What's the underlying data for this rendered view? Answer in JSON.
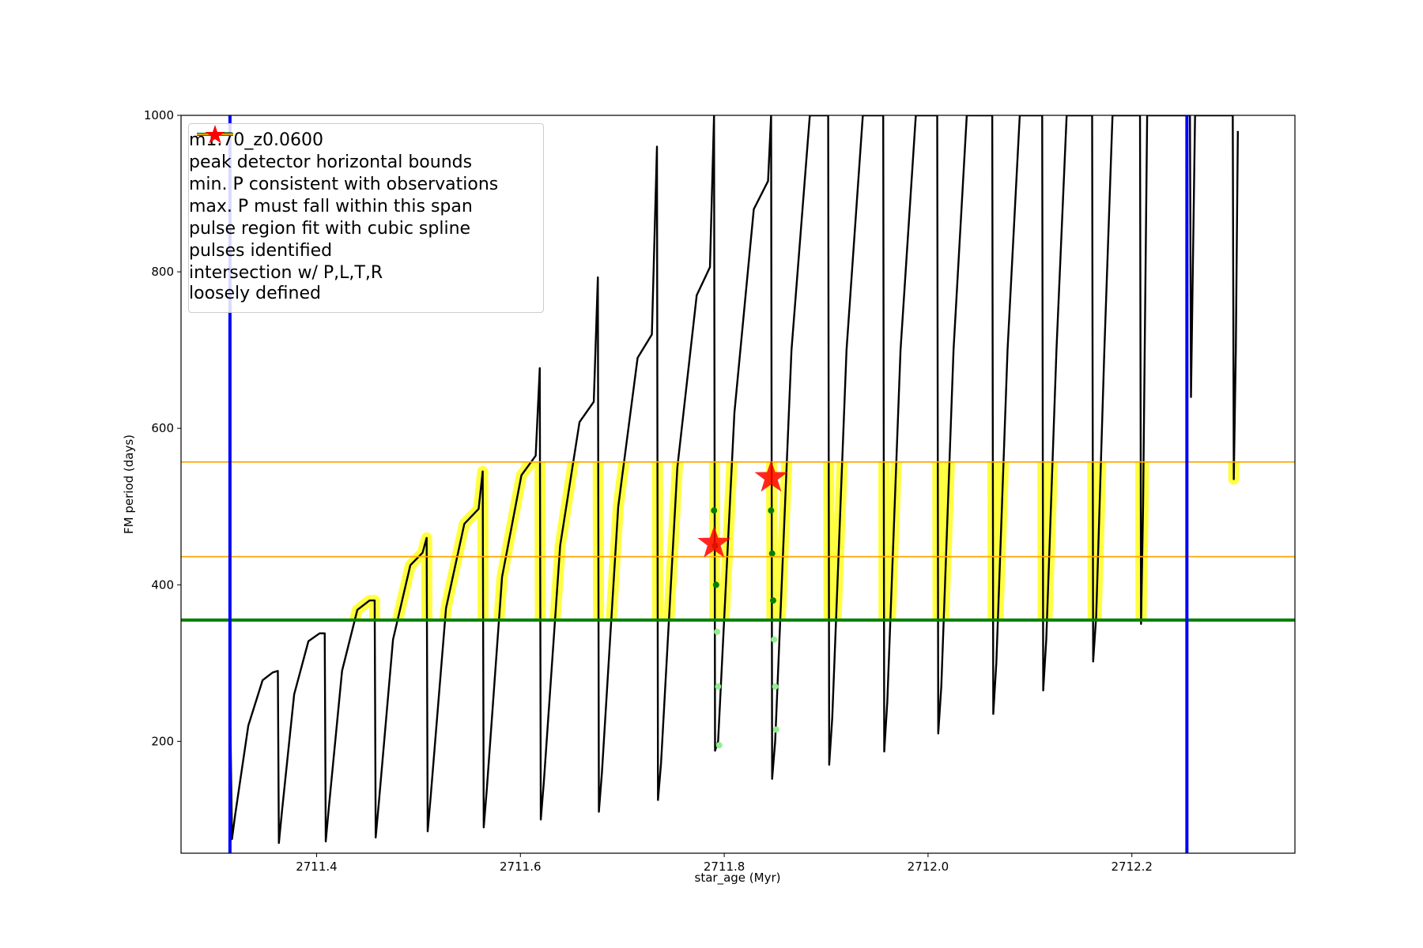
{
  "chart_data": {
    "type": "line",
    "xlabel": "star_age (Myr)",
    "ylabel": "FM period (days)",
    "xlim": [
      2711.267,
      2712.36
    ],
    "ylim": [
      57,
      1000
    ],
    "xticks": [
      2711.4,
      2711.6,
      2711.8,
      {
        "value": 2712,
        "label": "2712.0"
      },
      2712.2
    ],
    "yticks": [
      200,
      400,
      600,
      800,
      1000
    ],
    "series": [
      {
        "name": "m1.70_z0.0600",
        "color": "#000000",
        "x": [
          2711.315,
          2711.317,
          2711.32,
          2711.333,
          2711.347,
          2711.357,
          2711.362,
          2711.363,
          2711.366,
          2711.378,
          2711.392,
          2711.403,
          2711.408,
          2711.409,
          2711.412,
          2711.425,
          2711.44,
          2711.452,
          2711.457,
          2711.458,
          2711.461,
          2711.475,
          2711.492,
          2711.504,
          2711.508,
          2711.509,
          2711.512,
          2711.527,
          2711.545,
          2711.559,
          2711.563,
          2711.564,
          2711.567,
          2711.582,
          2711.601,
          2711.615,
          2711.619,
          2711.62,
          2711.623,
          2711.639,
          2711.658,
          2711.672,
          2711.676,
          2711.677,
          2711.68,
          2711.696,
          2711.715,
          2711.729,
          2711.734,
          2711.735,
          2711.738,
          2711.754,
          2711.773,
          2711.786,
          2711.79,
          2711.791,
          2711.794,
          2711.81,
          2711.829,
          2711.843,
          2711.846,
          2711.847,
          2711.85,
          2711.866,
          2711.884,
          2711.902,
          2711.903,
          2711.906,
          2711.92,
          2711.936,
          2711.956,
          2711.957,
          2711.96,
          2711.973,
          2711.988,
          2712.009,
          2712.01,
          2712.013,
          2712.025,
          2712.038,
          2712.063,
          2712.064,
          2712.067,
          2712.078,
          2712.09,
          2712.112,
          2712.113,
          2712.116,
          2712.126,
          2712.136,
          2712.161,
          2712.162,
          2712.165,
          2712.173,
          2712.181,
          2712.208,
          2712.209,
          2712.211,
          2712.215,
          2712.257,
          2712.258,
          2712.262,
          2712.299,
          2712.3,
          2712.302,
          2712.304
        ],
        "values": [
          265,
          75,
          105,
          220,
          278,
          288,
          290,
          70,
          110,
          260,
          328,
          338,
          338,
          72,
          115,
          290,
          368,
          380,
          380,
          77,
          120,
          330,
          425,
          441,
          460,
          85,
          130,
          370,
          478,
          497,
          545,
          90,
          138,
          410,
          540,
          565,
          677,
          100,
          148,
          450,
          608,
          634,
          793,
          110,
          160,
          500,
          690,
          720,
          960,
          125,
          172,
          550,
          770,
          806,
          1000,
          188,
          200,
          620,
          880,
          916,
          1000,
          152,
          200,
          700,
          1000,
          1000,
          170,
          230,
          700,
          1000,
          1000,
          187,
          250,
          700,
          1000,
          1000,
          210,
          270,
          700,
          1000,
          1000,
          235,
          300,
          700,
          1000,
          1000,
          265,
          330,
          700,
          1000,
          1000,
          302,
          360,
          700,
          1000,
          1000,
          350,
          500,
          1000,
          1000,
          640,
          1000,
          1000,
          535,
          700,
          980
        ]
      }
    ],
    "vlines": {
      "name": "peak detector horizontal bounds",
      "color": "#0000ff",
      "x": [
        2711.315,
        2712.254
      ]
    },
    "min_line": {
      "name": "min. P consistent with observations",
      "color": "#008000",
      "value": 355
    },
    "max_lines": {
      "name": "max. P must fall within this span",
      "color": "#ffa500",
      "values": [
        436,
        557
      ]
    },
    "spline": {
      "name": "pulse region fit with cubic spline",
      "color": "#90ee90",
      "x": [
        2711.79,
        2711.791,
        2711.792,
        2711.793,
        2711.794,
        2711.795,
        2711.846,
        2711.847,
        2711.848,
        2711.849,
        2711.85,
        2711.851
      ],
      "values": [
        495,
        450,
        400,
        340,
        270,
        195,
        495,
        440,
        380,
        330,
        270,
        215
      ]
    },
    "pulses": {
      "name": "pulses identified",
      "color": "#ff0000",
      "x": [
        2711.79,
        2711.846
      ],
      "values": [
        453,
        537
      ]
    },
    "highlight": {
      "name": "intersection w/ P,L,T,R\nloosely defined",
      "color": "#ffff00"
    }
  }
}
